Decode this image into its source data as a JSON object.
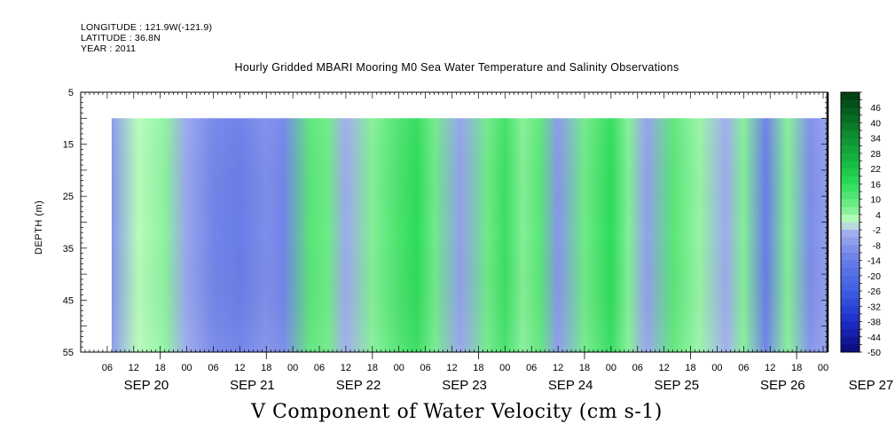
{
  "header": {
    "longitude": "LONGITUDE : 121.9W(-121.9)",
    "latitude": "LATITUDE : 36.8N",
    "year": "YEAR : 2011"
  },
  "chart_data": {
    "type": "heatmap",
    "title": "Hourly Gridded MBARI Mooring M0 Sea Water Temperature and Salinity Observations",
    "xlabel": "V Component of Water Velocity (cm s-1)",
    "ylabel": "DEPTH (m)",
    "y_axis": {
      "ticks": [
        5,
        15,
        25,
        35,
        45,
        55
      ],
      "range": [
        5,
        55
      ],
      "inverted": true
    },
    "x_axis": {
      "hour_labels": [
        "06",
        "12",
        "18",
        "00",
        "06",
        "12",
        "18",
        "00",
        "06",
        "12",
        "18",
        "00",
        "06",
        "12",
        "18",
        "00",
        "06",
        "12",
        "18",
        "00",
        "06",
        "12",
        "18",
        "00",
        "06",
        "12",
        "18",
        "00"
      ],
      "day_labels": [
        "SEP 20",
        "SEP 21",
        "SEP 22",
        "SEP 23",
        "SEP 24",
        "SEP 25",
        "SEP 26",
        "SEP 27"
      ],
      "range_hours": [
        0,
        169
      ]
    },
    "data_depth_range": [
      10,
      55
    ],
    "data_time_start_hour": 7,
    "colorbar": {
      "labels": [
        "46",
        "40",
        "34",
        "28",
        "22",
        "16",
        "10",
        "4",
        "-2",
        "-8",
        "-14",
        "-20",
        "-26",
        "-32",
        "-38",
        "-44",
        "-50"
      ],
      "range": [
        -50,
        52
      ]
    },
    "bands": [
      {
        "hour": 7,
        "value": -8
      },
      {
        "hour": 13,
        "value": 2
      },
      {
        "hour": 19,
        "value": 5
      },
      {
        "hour": 24,
        "value": -5
      },
      {
        "hour": 30,
        "value": -12
      },
      {
        "hour": 36,
        "value": -14
      },
      {
        "hour": 42,
        "value": -10
      },
      {
        "hour": 46,
        "value": -12
      },
      {
        "hour": 52,
        "value": 10
      },
      {
        "hour": 56,
        "value": 8
      },
      {
        "hour": 60,
        "value": -4
      },
      {
        "hour": 66,
        "value": 6
      },
      {
        "hour": 72,
        "value": 12
      },
      {
        "hour": 76,
        "value": 16
      },
      {
        "hour": 80,
        "value": 8
      },
      {
        "hour": 86,
        "value": -6
      },
      {
        "hour": 92,
        "value": 8
      },
      {
        "hour": 96,
        "value": 14
      },
      {
        "hour": 100,
        "value": 6
      },
      {
        "hour": 104,
        "value": 10
      },
      {
        "hour": 108,
        "value": -8
      },
      {
        "hour": 114,
        "value": 8
      },
      {
        "hour": 120,
        "value": 16
      },
      {
        "hour": 124,
        "value": 6
      },
      {
        "hour": 128,
        "value": -6
      },
      {
        "hour": 134,
        "value": 10
      },
      {
        "hour": 140,
        "value": 4
      },
      {
        "hour": 146,
        "value": -4
      },
      {
        "hour": 150,
        "value": 6
      },
      {
        "hour": 155,
        "value": -14
      },
      {
        "hour": 160,
        "value": 6
      },
      {
        "hour": 165,
        "value": -10
      },
      {
        "hour": 169,
        "value": -6
      }
    ]
  }
}
